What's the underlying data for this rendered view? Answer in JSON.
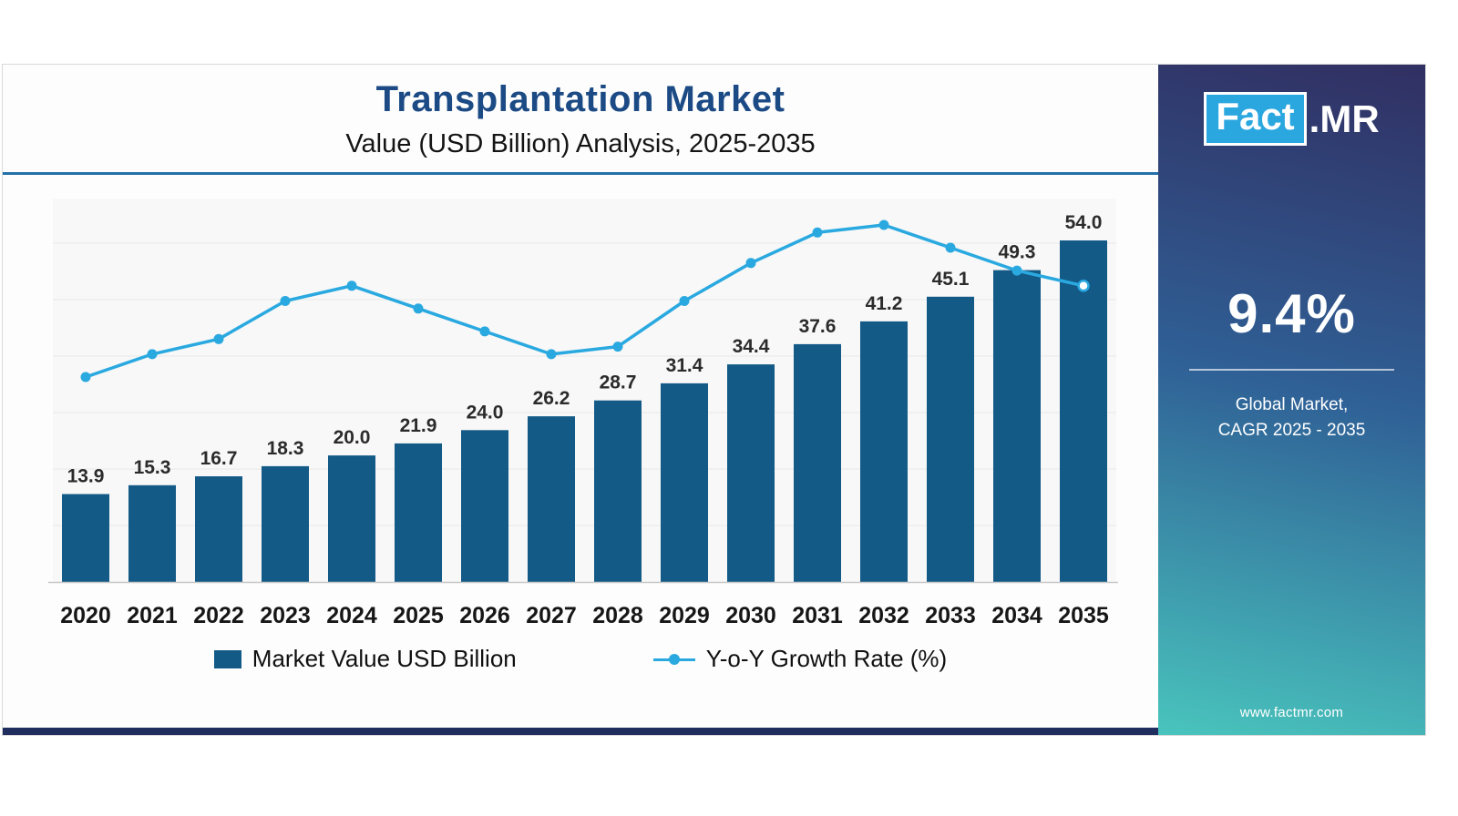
{
  "chart_data": {
    "type": "bar+line",
    "title": "Transplantation Market",
    "subtitle": "Value (USD Billion) Analysis, 2025-2035",
    "categories": [
      "2020",
      "2021",
      "2022",
      "2023",
      "2024",
      "2025",
      "2026",
      "2027",
      "2028",
      "2029",
      "2030",
      "2031",
      "2032",
      "2033",
      "2034",
      "2035"
    ],
    "series": [
      {
        "name": "Market Value USD Billion",
        "type": "bar",
        "values": [
          13.9,
          15.3,
          16.7,
          18.3,
          20.0,
          21.9,
          24.0,
          26.2,
          28.7,
          31.4,
          34.4,
          37.6,
          41.2,
          45.1,
          49.3,
          54.0
        ],
        "labels": [
          "13.9",
          "15.3",
          "16.7",
          "18.3",
          "20.0",
          "21.9",
          "24.0",
          "26.2",
          "28.7",
          "31.4",
          "34.4",
          "37.6",
          "41.2",
          "45.1",
          "49.3",
          "54.0"
        ]
      },
      {
        "name": "Y-o-Y Growth Rate (%)",
        "type": "line",
        "values": [
          8.6,
          8.9,
          9.1,
          9.6,
          9.8,
          9.5,
          9.2,
          8.9,
          9.0,
          9.6,
          10.1,
          10.5,
          10.6,
          10.3,
          10.0,
          9.8
        ],
        "note": "line has no printed data labels; values estimated from marker positions"
      }
    ],
    "ylim": [
      0,
      60
    ],
    "grid": "faint horizontal gridlines",
    "legend_position": "bottom"
  },
  "sidebar": {
    "logo_fact": "Fact",
    "logo_mr": ".MR",
    "cagr_value": "9.4%",
    "caption_line1": "Global Market,",
    "caption_line2": "CAGR 2025 - 2035",
    "website": "www.factmr.com"
  },
  "colors": {
    "title": "#1b4a85",
    "divider": "#2470a8",
    "bar": "#135a87",
    "line": "#2aa9e0",
    "strip": "#1f2d5f",
    "sidebar_top": "#312f62",
    "sidebar_mid": "#2f6096",
    "sidebar_bottom": "#49c4bd",
    "logo_blue": "#2ba7e0"
  }
}
